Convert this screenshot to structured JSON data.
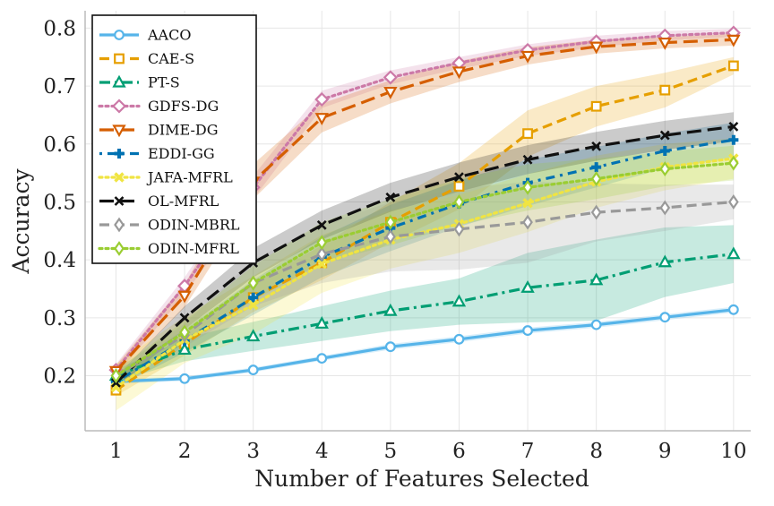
{
  "chart_data": {
    "type": "line",
    "title": "",
    "xlabel": "Number of Features Selected",
    "ylabel": "Accuracy",
    "x": [
      1,
      2,
      3,
      4,
      5,
      6,
      7,
      8,
      9,
      10
    ],
    "xlim": [
      0.55,
      10.25
    ],
    "ylim": [
      0.105,
      0.83
    ],
    "yticks": [
      0.2,
      0.3,
      0.4,
      0.5,
      0.6,
      0.7,
      0.8
    ],
    "ytick_labels": [
      "0.2",
      "0.3",
      "0.4",
      "0.5",
      "0.6",
      "0.7",
      "0.8"
    ],
    "xtick_labels": [
      "1",
      "2",
      "3",
      "4",
      "5",
      "6",
      "7",
      "8",
      "9",
      "10"
    ],
    "grid": true,
    "legend_position": "top-left",
    "series": [
      {
        "name": "AACO",
        "color": "#56B4E9",
        "dash": "solid",
        "marker": "circle",
        "values": [
          0.19,
          0.195,
          0.21,
          0.23,
          0.25,
          0.263,
          0.278,
          0.288,
          0.301,
          0.314
        ],
        "band": [
          0.004,
          0.004,
          0.004,
          0.004,
          0.005,
          0.005,
          0.005,
          0.005,
          0.005,
          0.005
        ]
      },
      {
        "name": "CAE-S",
        "color": "#E69F00",
        "dash": "dashed",
        "marker": "square",
        "values": [
          0.175,
          0.255,
          0.335,
          0.395,
          0.465,
          0.527,
          0.618,
          0.665,
          0.693,
          0.735
        ],
        "band": [
          0.01,
          0.02,
          0.025,
          0.03,
          0.035,
          0.04,
          0.04,
          0.035,
          0.03,
          0.015
        ]
      },
      {
        "name": "PT-S",
        "color": "#009E73",
        "dash": "dashdot",
        "marker": "triangle-up",
        "values": [
          0.2,
          0.245,
          0.268,
          0.29,
          0.312,
          0.328,
          0.352,
          0.365,
          0.396,
          0.41
        ],
        "band": [
          0.01,
          0.02,
          0.025,
          0.03,
          0.035,
          0.04,
          0.06,
          0.07,
          0.06,
          0.05
        ]
      },
      {
        "name": "GDFS-DG",
        "color": "#CC79A7",
        "dash": "dotted",
        "marker": "diamond",
        "values": [
          0.21,
          0.355,
          0.525,
          0.677,
          0.715,
          0.74,
          0.762,
          0.777,
          0.787,
          0.792
        ],
        "band": [
          0.01,
          0.015,
          0.02,
          0.015,
          0.012,
          0.01,
          0.01,
          0.01,
          0.008,
          0.007
        ]
      },
      {
        "name": "DIME-DG",
        "color": "#D55E00",
        "dash": "longdash",
        "marker": "triangle-down",
        "values": [
          0.208,
          0.338,
          0.535,
          0.645,
          0.69,
          0.725,
          0.752,
          0.768,
          0.775,
          0.78
        ],
        "band": [
          0.01,
          0.02,
          0.03,
          0.025,
          0.02,
          0.018,
          0.015,
          0.012,
          0.01,
          0.01
        ]
      },
      {
        "name": "EDDI-GG",
        "color": "#0072B2",
        "dash": "dashdot2",
        "marker": "plus",
        "values": [
          0.19,
          0.26,
          0.335,
          0.405,
          0.455,
          0.497,
          0.533,
          0.56,
          0.588,
          0.607
        ],
        "band": [
          0.01,
          0.02,
          0.03,
          0.035,
          0.04,
          0.04,
          0.04,
          0.035,
          0.03,
          0.03
        ]
      },
      {
        "name": "JAFA-MFRL",
        "color": "#F0E442",
        "dash": "dotted",
        "marker": "x-thick",
        "values": [
          0.18,
          0.262,
          0.322,
          0.393,
          0.435,
          0.462,
          0.498,
          0.535,
          0.56,
          0.575
        ],
        "band": [
          0.04,
          0.04,
          0.05,
          0.05,
          0.05,
          0.05,
          0.05,
          0.045,
          0.04,
          0.035
        ]
      },
      {
        "name": "OL-MFRL",
        "color": "#111111",
        "dash": "longdash",
        "marker": "x",
        "values": [
          0.188,
          0.3,
          0.395,
          0.46,
          0.508,
          0.543,
          0.573,
          0.596,
          0.615,
          0.63
        ],
        "band": [
          0.01,
          0.02,
          0.025,
          0.025,
          0.025,
          0.025,
          0.025,
          0.025,
          0.025,
          0.025
        ]
      },
      {
        "name": "ODIN-MBRL",
        "color": "#999999",
        "dash": "dashed",
        "marker": "thin-diamond",
        "values": [
          0.2,
          0.27,
          0.36,
          0.41,
          0.44,
          0.453,
          0.465,
          0.482,
          0.49,
          0.5
        ],
        "band": [
          0.01,
          0.02,
          0.04,
          0.05,
          0.06,
          0.07,
          0.07,
          0.05,
          0.04,
          0.03
        ]
      },
      {
        "name": "ODIN-MFRL",
        "color": "#9ACD32",
        "dash": "dotted",
        "marker": "thin-diamond",
        "values": [
          0.2,
          0.275,
          0.36,
          0.43,
          0.465,
          0.5,
          0.525,
          0.54,
          0.557,
          0.567
        ],
        "band": [
          0.01,
          0.02,
          0.03,
          0.035,
          0.04,
          0.04,
          0.04,
          0.035,
          0.03,
          0.03
        ]
      }
    ]
  }
}
